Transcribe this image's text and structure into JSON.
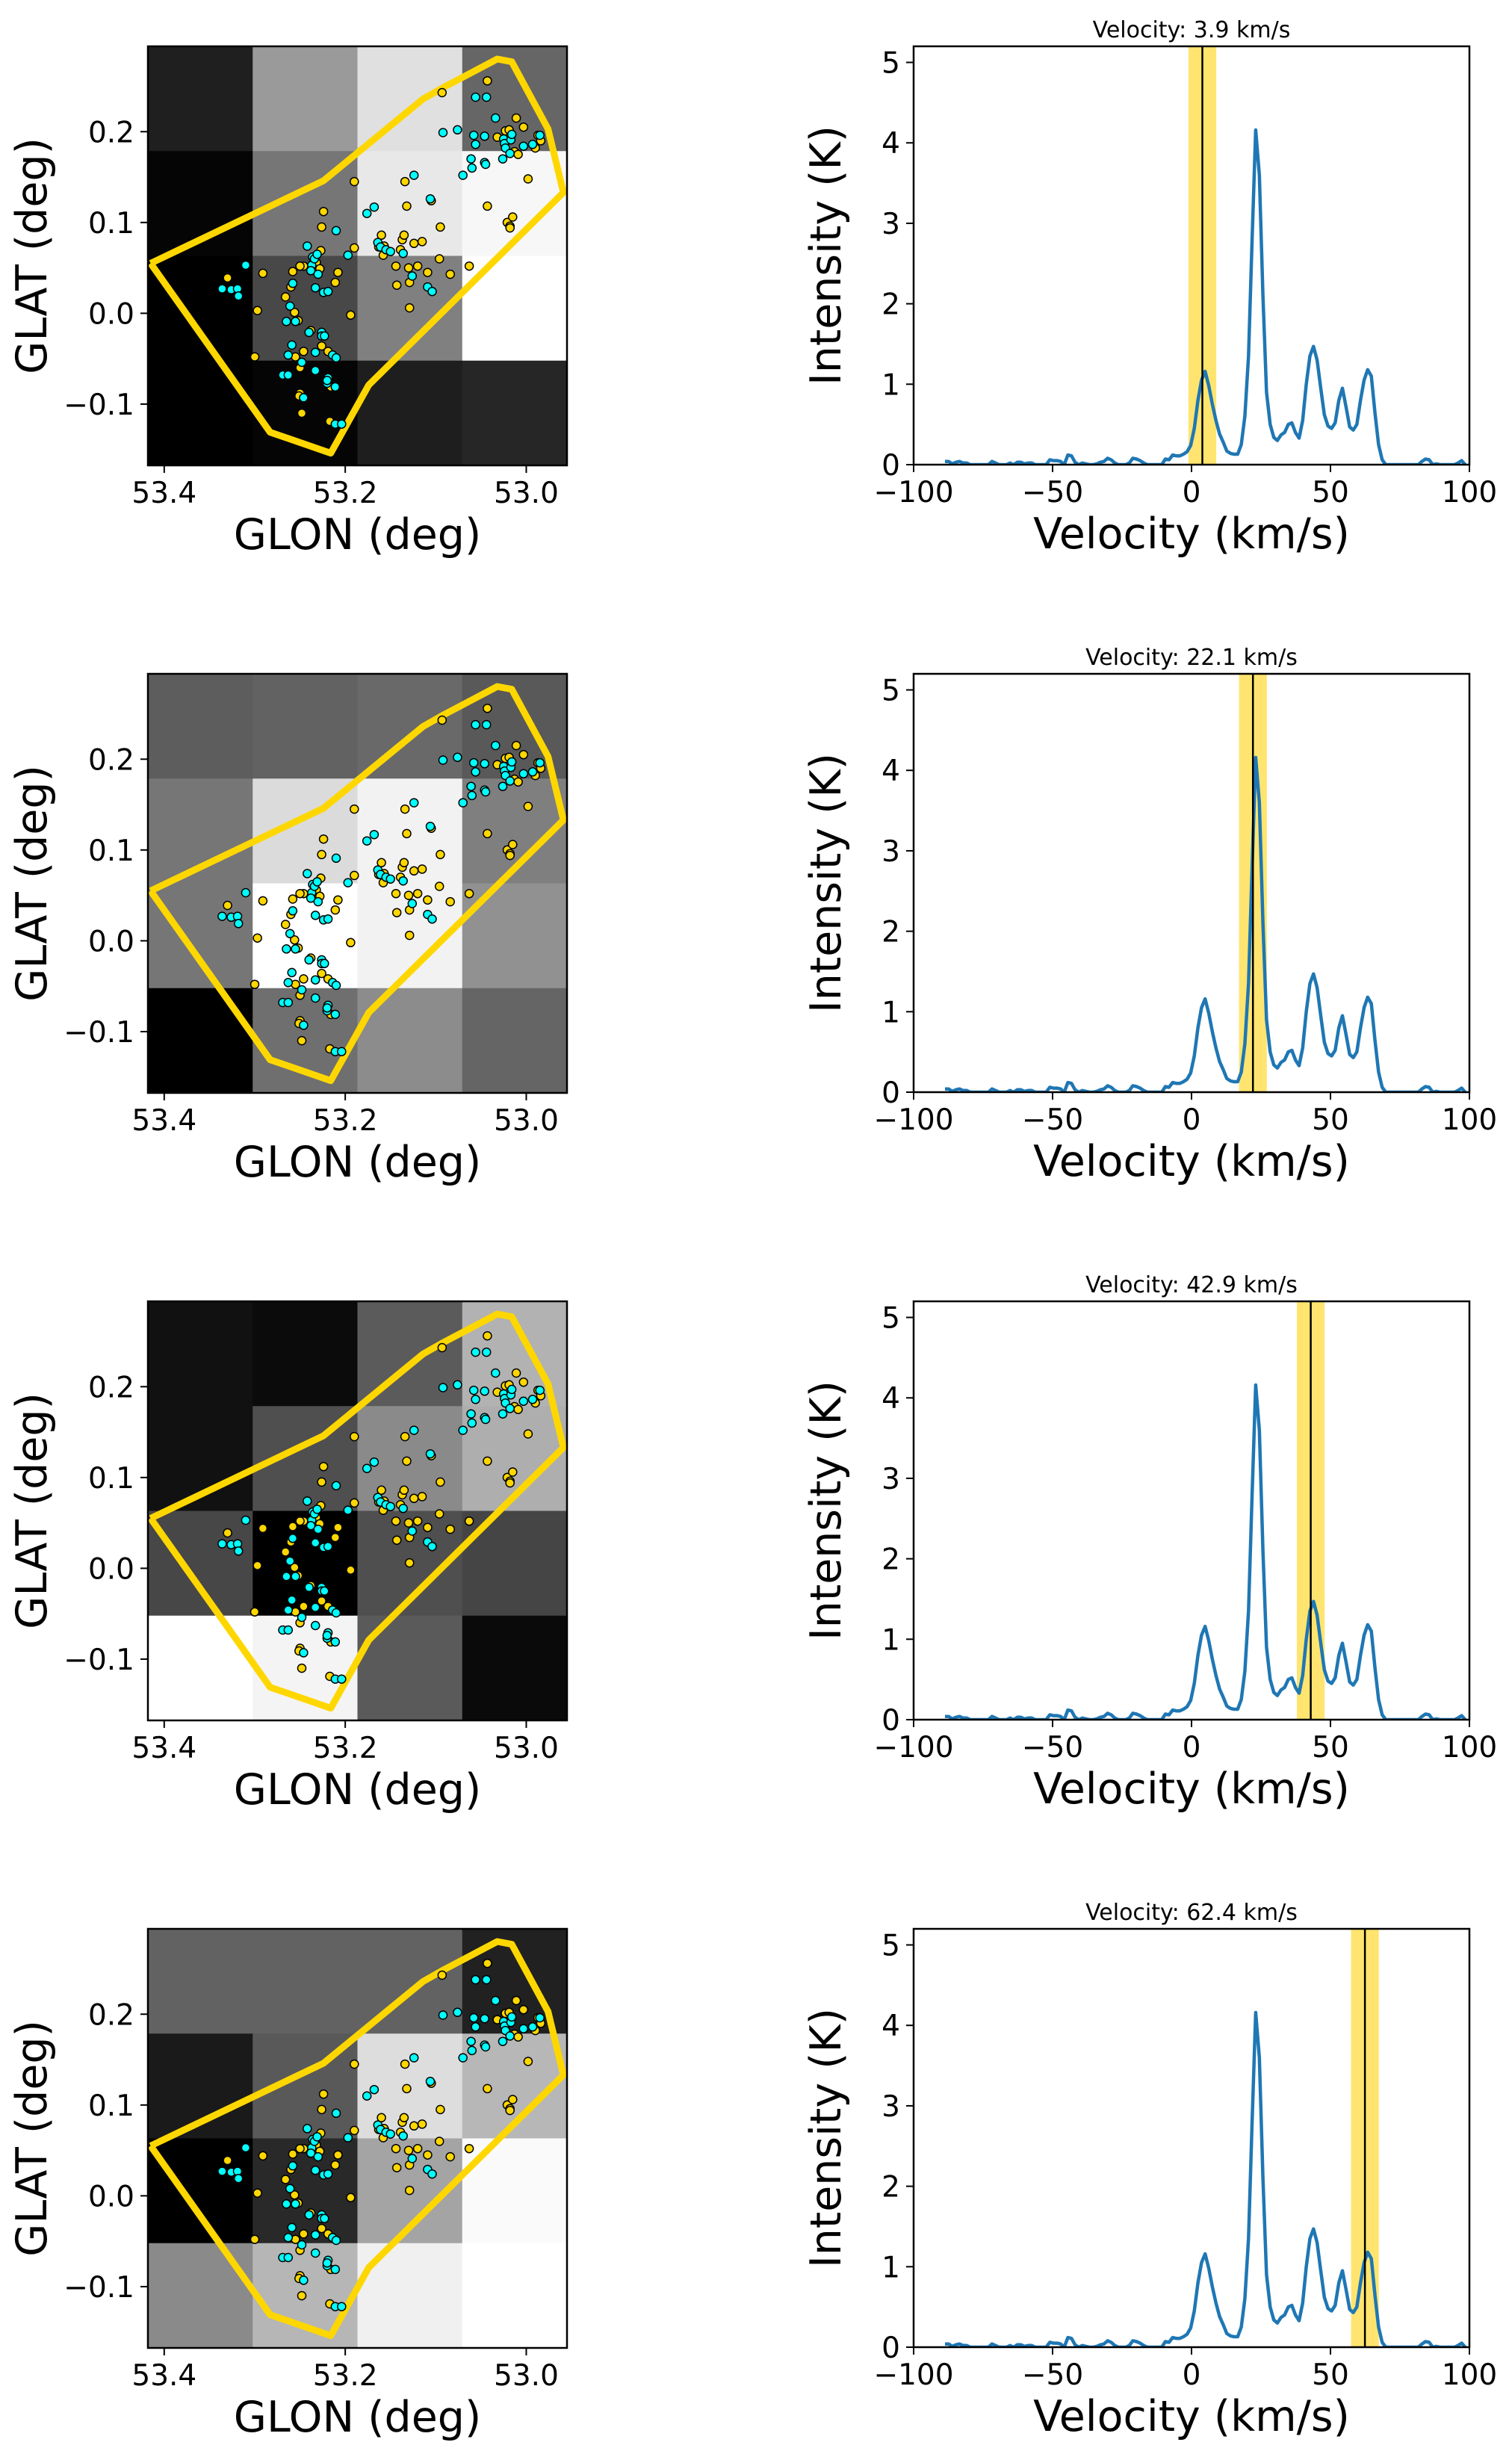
{
  "chart_data": {
    "type": "figure-grid",
    "layout": "4 rows x 2 columns",
    "colors": {
      "polygon": "#FFD700",
      "cyan_points": "#00FFFF",
      "yellow_points": "#FFD700",
      "point_edge": "#000000",
      "spectrum_line": "#1F77B4",
      "velocity_band": "#FFE56F",
      "velocity_marker": "#000000"
    },
    "map_axes": {
      "type": "heatmap+scatter",
      "xlabel": "GLON (deg)",
      "ylabel": "GLAT (deg)",
      "xlim": [
        53.418,
        52.955
      ],
      "ylim": [
        -0.1675,
        0.294
      ],
      "xticks": [
        53.4,
        53.2,
        53.0
      ],
      "xtick_labels": [
        "53.4",
        "53.2",
        "53.0"
      ],
      "yticks": [
        -0.1,
        0.0,
        0.1,
        0.2
      ],
      "ytick_labels": [
        "−0.1",
        "0.0",
        "0.1",
        "0.2"
      ],
      "grid": false
    },
    "spectrum_axes": {
      "type": "line",
      "xlabel": "Velocity (km/s)",
      "ylabel": "Intensity (K)",
      "xlim": [
        -100,
        100
      ],
      "ylim": [
        0,
        5.2
      ],
      "xticks": [
        -100,
        -50,
        0,
        50,
        100
      ],
      "xtick_labels": [
        "−100",
        "−50",
        "0",
        "50",
        "100"
      ],
      "yticks": [
        0,
        1,
        2,
        3,
        4,
        5
      ],
      "ytick_labels": [
        "0",
        "1",
        "2",
        "3",
        "4",
        "5"
      ],
      "grid": false
    },
    "polygon": [
      [
        53.415,
        0.055
      ],
      [
        53.283,
        -0.131
      ],
      [
        53.216,
        -0.154
      ],
      [
        53.174,
        -0.079
      ],
      [
        52.959,
        0.133
      ],
      [
        52.976,
        0.203
      ],
      [
        53.016,
        0.277
      ],
      [
        53.032,
        0.28
      ],
      [
        53.091,
        0.249
      ],
      [
        53.114,
        0.236
      ],
      [
        53.224,
        0.146
      ],
      [
        53.415,
        0.055
      ]
    ],
    "cyan_points": [
      [
        53.336,
        0.027
      ],
      [
        53.326,
        0.026
      ],
      [
        53.319,
        0.027
      ],
      [
        53.318,
        0.019
      ],
      [
        53.31,
        0.053
      ],
      [
        53.242,
        0.074
      ],
      [
        53.236,
        0.062
      ],
      [
        53.237,
        0.053
      ],
      [
        53.238,
        0.047
      ],
      [
        53.234,
        0.06
      ],
      [
        53.23,
        0.043
      ],
      [
        53.231,
        0.065
      ],
      [
        53.258,
        0.033
      ],
      [
        53.261,
        0.008
      ],
      [
        53.265,
        -0.009
      ],
      [
        53.255,
        -0.009
      ],
      [
        53.24,
        -0.021
      ],
      [
        53.226,
        -0.021
      ],
      [
        53.226,
        -0.025
      ],
      [
        53.223,
        -0.025
      ],
      [
        53.233,
        -0.043
      ],
      [
        53.214,
        -0.046
      ],
      [
        53.21,
        -0.049
      ],
      [
        53.259,
        -0.035
      ],
      [
        53.263,
        -0.046
      ],
      [
        53.248,
        -0.054
      ],
      [
        53.269,
        -0.068
      ],
      [
        53.263,
        -0.068
      ],
      [
        53.233,
        -0.063
      ],
      [
        53.219,
        -0.071
      ],
      [
        53.22,
        -0.077
      ],
      [
        53.22,
        -0.074
      ],
      [
        53.211,
        -0.081
      ],
      [
        53.246,
        -0.093
      ],
      [
        53.211,
        -0.122
      ],
      [
        53.204,
        -0.122
      ],
      [
        53.233,
        0.028
      ],
      [
        53.224,
        0.023
      ],
      [
        53.219,
        0.024
      ],
      [
        53.21,
        0.091
      ],
      [
        53.197,
        0.064
      ],
      [
        53.176,
        0.11
      ],
      [
        53.168,
        0.117
      ],
      [
        53.164,
        0.078
      ],
      [
        53.161,
        0.073
      ],
      [
        53.155,
        0.07
      ],
      [
        53.15,
        0.068
      ],
      [
        53.136,
        0.066
      ],
      [
        53.124,
        0.152
      ],
      [
        53.106,
        0.126
      ],
      [
        53.126,
        0.041
      ],
      [
        53.109,
        0.029
      ],
      [
        53.104,
        0.024
      ],
      [
        53.092,
        0.199
      ],
      [
        53.076,
        0.202
      ],
      [
        53.056,
        0.238
      ],
      [
        53.044,
        0.238
      ],
      [
        53.034,
        0.215
      ],
      [
        53.058,
        0.196
      ],
      [
        53.046,
        0.195
      ],
      [
        53.056,
        0.186
      ],
      [
        53.025,
        0.192
      ],
      [
        53.024,
        0.187
      ],
      [
        53.017,
        0.191
      ],
      [
        53.016,
        0.197
      ],
      [
        53.023,
        0.182
      ],
      [
        53.018,
        0.176
      ],
      [
        53.003,
        0.184
      ],
      [
        52.993,
        0.186
      ],
      [
        52.985,
        0.196
      ],
      [
        53.026,
        0.17
      ],
      [
        53.061,
        0.17
      ],
      [
        53.06,
        0.16
      ],
      [
        53.07,
        0.152
      ],
      [
        53.046,
        0.166
      ],
      [
        53.045,
        0.164
      ]
    ],
    "yellow_points": [
      [
        53.33,
        0.039
      ],
      [
        53.291,
        0.044
      ],
      [
        53.297,
        0.003
      ],
      [
        53.3,
        -0.048
      ],
      [
        53.246,
        0.052
      ],
      [
        53.232,
        0.056
      ],
      [
        53.228,
        0.049
      ],
      [
        53.227,
        0.069
      ],
      [
        53.25,
        0.052
      ],
      [
        53.258,
        0.046
      ],
      [
        53.26,
        0.029
      ],
      [
        53.266,
        0.018
      ],
      [
        53.256,
        0.001
      ],
      [
        53.252,
        -0.008
      ],
      [
        53.238,
        -0.019
      ],
      [
        53.226,
        -0.036
      ],
      [
        53.219,
        -0.042
      ],
      [
        53.246,
        -0.042
      ],
      [
        53.255,
        -0.048
      ],
      [
        53.25,
        -0.06
      ],
      [
        53.216,
        -0.081
      ],
      [
        53.25,
        -0.088
      ],
      [
        53.251,
        -0.091
      ],
      [
        53.248,
        -0.11
      ],
      [
        53.217,
        -0.119
      ],
      [
        53.211,
        0.034
      ],
      [
        53.208,
        0.045
      ],
      [
        53.224,
        0.112
      ],
      [
        53.226,
        0.095
      ],
      [
        53.19,
        0.145
      ],
      [
        53.19,
        0.072
      ],
      [
        53.194,
        -0.002
      ],
      [
        53.16,
        0.086
      ],
      [
        53.163,
        0.073
      ],
      [
        53.158,
        0.064
      ],
      [
        53.157,
        0.074
      ],
      [
        53.144,
        0.052
      ],
      [
        53.139,
        0.07
      ],
      [
        53.137,
        0.081
      ],
      [
        53.135,
        0.086
      ],
      [
        53.124,
        0.077
      ],
      [
        53.115,
        0.079
      ],
      [
        53.132,
        0.118
      ],
      [
        53.134,
        0.145
      ],
      [
        53.105,
        0.124
      ],
      [
        53.129,
        0.034
      ],
      [
        53.109,
        0.045
      ],
      [
        53.12,
        0.052
      ],
      [
        53.13,
        0.05
      ],
      [
        53.143,
        0.031
      ],
      [
        53.129,
        0.006
      ],
      [
        53.096,
        0.06
      ],
      [
        53.095,
        0.095
      ],
      [
        53.084,
        0.043
      ],
      [
        53.063,
        0.052
      ],
      [
        53.093,
        0.243
      ],
      [
        53.043,
        0.256
      ],
      [
        53.032,
        0.194
      ],
      [
        53.023,
        0.201
      ],
      [
        53.011,
        0.215
      ],
      [
        53.003,
        0.205
      ],
      [
        53.019,
        0.202
      ],
      [
        52.987,
        0.196
      ],
      [
        52.984,
        0.19
      ],
      [
        52.99,
        0.182
      ],
      [
        53.013,
        0.178
      ],
      [
        53.009,
        0.175
      ],
      [
        53.043,
        0.118
      ],
      [
        52.998,
        0.148
      ],
      [
        53.021,
        0.1
      ],
      [
        53.018,
        0.096
      ],
      [
        53.018,
        0.094
      ],
      [
        53.015,
        0.106
      ]
    ],
    "spectrum": {
      "velocity": [
        -88.7,
        -87.4,
        -86.1,
        -84.8,
        -83.5,
        -82.2,
        -80.9,
        -79.6,
        -78.3,
        -77.0,
        -75.7,
        -74.4,
        -73.1,
        -71.8,
        -70.5,
        -69.2,
        -67.9,
        -66.6,
        -65.3,
        -64.0,
        -62.7,
        -61.4,
        -60.1,
        -58.8,
        -57.5,
        -56.2,
        -54.9,
        -53.6,
        -52.3,
        -51.0,
        -49.7,
        -48.4,
        -47.1,
        -45.8,
        -44.5,
        -43.2,
        -41.9,
        -40.6,
        -39.3,
        -38.0,
        -36.7,
        -35.4,
        -34.1,
        -32.8,
        -31.5,
        -30.2,
        -28.9,
        -27.6,
        -26.3,
        -25.0,
        -23.7,
        -22.4,
        -21.1,
        -19.8,
        -18.5,
        -17.2,
        -15.9,
        -14.6,
        -13.3,
        -12.0,
        -10.7,
        -9.4,
        -8.1,
        -6.8,
        -5.5,
        -4.2,
        -2.9,
        -1.6,
        -0.3,
        1.0,
        2.3,
        3.6,
        4.9,
        6.2,
        7.5,
        8.8,
        10.1,
        11.4,
        12.7,
        14.0,
        15.3,
        16.6,
        17.9,
        19.2,
        20.5,
        21.8,
        23.1,
        24.4,
        25.7,
        27.0,
        28.3,
        29.6,
        30.9,
        32.2,
        33.5,
        34.8,
        36.1,
        37.4,
        38.7,
        40.0,
        41.3,
        42.6,
        43.9,
        45.2,
        46.5,
        47.8,
        49.1,
        50.4,
        51.7,
        53.0,
        54.3,
        55.6,
        56.9,
        58.2,
        59.5,
        60.8,
        62.1,
        63.4,
        64.7,
        66.0,
        67.3,
        68.6,
        69.9,
        71.2,
        72.5,
        73.8,
        75.1,
        76.4,
        77.7,
        79.0,
        80.3,
        81.6,
        82.9,
        84.2,
        85.5,
        86.8,
        88.1,
        89.4,
        90.7,
        92.0,
        93.3,
        94.6,
        95.9,
        97.2,
        98.5
      ],
      "intensity": [
        0.04,
        0.04,
        0.01,
        0.03,
        0.04,
        0.02,
        0.02,
        0.0,
        0.0,
        0.0,
        0.0,
        0.0,
        0.0,
        0.04,
        0.02,
        0.0,
        0.0,
        0.0,
        0.02,
        0.0,
        0.03,
        0.03,
        0.01,
        0.02,
        0.02,
        0.0,
        0.0,
        0.0,
        0.0,
        0.06,
        0.05,
        0.05,
        0.04,
        0.0,
        0.12,
        0.11,
        0.03,
        0.0,
        0.02,
        0.01,
        0.0,
        0.0,
        0.01,
        0.03,
        0.04,
        0.08,
        0.06,
        0.02,
        0.0,
        0.0,
        0.0,
        0.02,
        0.08,
        0.07,
        0.05,
        0.02,
        0.0,
        0.0,
        0.0,
        0.0,
        0.0,
        0.07,
        0.06,
        0.12,
        0.11,
        0.11,
        0.13,
        0.16,
        0.24,
        0.45,
        0.8,
        1.05,
        1.16,
        0.98,
        0.75,
        0.55,
        0.38,
        0.28,
        0.17,
        0.14,
        0.13,
        0.13,
        0.25,
        0.6,
        1.35,
        2.8,
        4.16,
        3.6,
        2.1,
        0.9,
        0.5,
        0.34,
        0.3,
        0.37,
        0.4,
        0.5,
        0.52,
        0.4,
        0.33,
        0.55,
        1.0,
        1.35,
        1.47,
        1.3,
        0.95,
        0.62,
        0.48,
        0.45,
        0.52,
        0.8,
        0.95,
        0.72,
        0.47,
        0.43,
        0.5,
        0.8,
        1.05,
        1.18,
        1.1,
        0.65,
        0.25,
        0.06,
        0.0,
        0.0,
        0.0,
        0.0,
        0.0,
        0.0,
        0.0,
        0.0,
        0.0,
        0.0,
        0.04,
        0.07,
        0.06,
        0.0,
        0.01,
        0.0,
        0.0,
        0.0,
        0.0,
        0.0,
        0.02,
        0.05,
        0.0
      ]
    },
    "panels": [
      {
        "title": "Velocity: 3.9 km/s",
        "velocity": 3.9,
        "band": [
          -1.1,
          8.9
        ],
        "map_cells": [
          [
            31,
            154,
            224,
            102
          ],
          [
            5,
            118,
            232,
            247
          ],
          [
            0,
            72,
            128,
            255
          ],
          [
            0,
            5,
            30,
            38
          ]
        ]
      },
      {
        "title": "Velocity: 22.1 km/s",
        "velocity": 22.1,
        "band": [
          17.1,
          27.1
        ],
        "map_cells": [
          [
            93,
            98,
            105,
            89
          ],
          [
            118,
            219,
            242,
            127
          ],
          [
            118,
            255,
            242,
            145
          ],
          [
            0,
            111,
            140,
            101
          ]
        ]
      },
      {
        "title": "Velocity: 42.9 km/s",
        "velocity": 42.9,
        "band": [
          37.9,
          47.9
        ],
        "map_cells": [
          [
            17,
            11,
            91,
            178
          ],
          [
            17,
            79,
            138,
            174
          ],
          [
            71,
            0,
            79,
            69
          ],
          [
            255,
            244,
            90,
            10
          ]
        ]
      },
      {
        "title": "Velocity: 62.4 km/s",
        "velocity": 62.4,
        "band": [
          57.4,
          67.4
        ],
        "map_cells": [
          [
            98,
            98,
            98,
            33
          ],
          [
            26,
            89,
            221,
            183
          ],
          [
            0,
            41,
            164,
            250
          ],
          [
            138,
            182,
            240,
            255
          ]
        ]
      }
    ]
  }
}
